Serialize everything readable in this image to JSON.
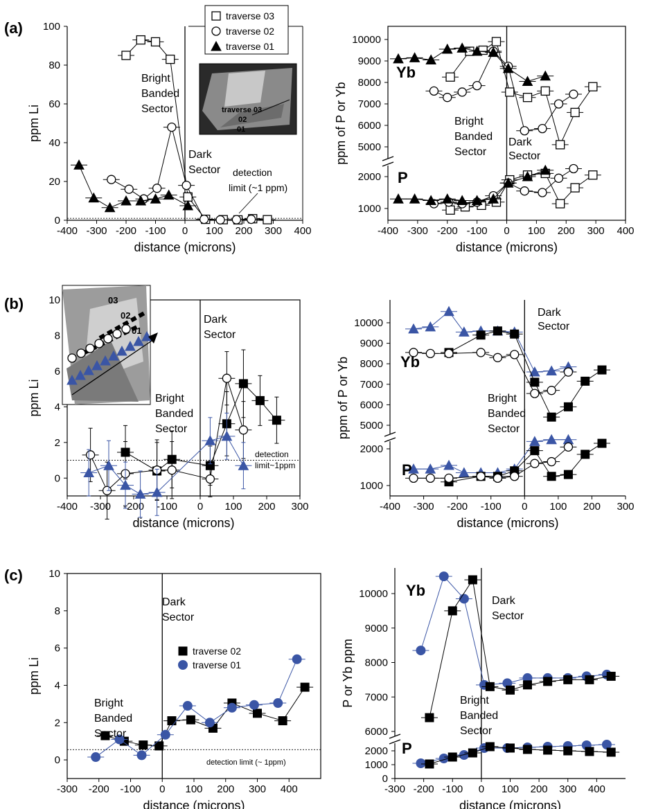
{
  "chart_data": [
    {
      "panel_label": "(a)",
      "type": "scatter",
      "xlabel": "distance (microns)",
      "ylabel": "ppm Li",
      "xlim": [
        -400,
        400
      ],
      "ylim": [
        0,
        100
      ],
      "xticks": [
        -400,
        -300,
        -200,
        -100,
        0,
        100,
        200,
        300,
        400
      ],
      "yticks": [
        0,
        20,
        40,
        60,
        80,
        100
      ],
      "y_tick_labels": [
        "0",
        "20",
        "40",
        "60",
        "80",
        "100"
      ],
      "legend": {
        "placement": "top-right",
        "entries": [
          {
            "name": "traverse 03",
            "marker": "square-open"
          },
          {
            "name": "traverse 02",
            "marker": "circle-open"
          },
          {
            "name": "traverse 01",
            "marker": "triangle-filled"
          }
        ]
      },
      "annotations": [
        "Bright Banded Sector",
        "Dark Sector",
        "detection limit (~1 ppm)"
      ],
      "inset_labels": [
        "traverse 03",
        "02",
        "01"
      ],
      "series": [
        {
          "name": "traverse 03",
          "marker": "square-open",
          "color": "#000000",
          "x": [
            -200,
            -150,
            -100,
            -50,
            10,
            70,
            130,
            180,
            230,
            280
          ],
          "y": [
            85,
            93,
            92,
            83,
            12,
            0.5,
            0.3,
            0.2,
            0.8,
            0.3
          ]
        },
        {
          "name": "traverse 02",
          "marker": "circle-open",
          "color": "#000000",
          "x": [
            -250,
            -190,
            -140,
            -95,
            -45,
            5,
            65,
            120,
            175,
            225
          ],
          "y": [
            21,
            16,
            11,
            16.5,
            48,
            18,
            0.5,
            0.2,
            0.3,
            0.5
          ]
        },
        {
          "name": "traverse 01",
          "marker": "triangle-filled",
          "color": "#000000",
          "x": [
            -360,
            -310,
            -255,
            -200,
            -150,
            -100,
            -55,
            10
          ],
          "y": [
            28.5,
            11.5,
            6.5,
            10,
            10,
            11,
            13,
            7.5
          ]
        }
      ]
    },
    {
      "panel_label": "",
      "type": "scatter",
      "xlabel": "distance (microns)",
      "ylabel": "ppm of P or Yb",
      "xlim": [
        -400,
        400
      ],
      "xticks": [
        -400,
        -300,
        -200,
        -100,
        0,
        100,
        200,
        300,
        400
      ],
      "y_tick_labels": [
        "1000",
        "2000",
        "5000",
        "6000",
        "7000",
        "8000",
        "9000",
        "10000"
      ],
      "annotations": [
        "Yb",
        "P",
        "Bright Banded Sector",
        "Dark Sector"
      ],
      "series": [
        {
          "name": "traverse 03 Yb",
          "marker": "square-open",
          "color": "#000000",
          "x": [
            -190,
            -125,
            -80,
            -35,
            10,
            70,
            130,
            180,
            230,
            290
          ],
          "y": [
            8250,
            9450,
            9500,
            9900,
            7550,
            7300,
            7600,
            5100,
            6600,
            7800
          ]
        },
        {
          "name": "traverse 02 Yb",
          "marker": "circle-open",
          "color": "#000000",
          "x": [
            -245,
            -200,
            -150,
            -100,
            -45,
            5,
            60,
            120,
            175,
            225
          ],
          "y": [
            7600,
            7300,
            7550,
            7850,
            9450,
            8750,
            5750,
            5850,
            7000,
            7450
          ]
        },
        {
          "name": "traverse 01 Yb",
          "marker": "triangle-filled",
          "color": "#000000",
          "x": [
            -365,
            -310,
            -255,
            -200,
            -150,
            -100,
            -45,
            5,
            70,
            130
          ],
          "y": [
            9100,
            9150,
            9050,
            9550,
            9600,
            9450,
            9400,
            8650,
            8050,
            8300
          ]
        },
        {
          "name": "traverse 03 P",
          "marker": "square-open",
          "color": "#000000",
          "x": [
            -190,
            -140,
            -85,
            -35,
            10,
            70,
            130,
            180,
            230,
            290
          ],
          "y": [
            950,
            1050,
            1100,
            1200,
            1900,
            2050,
            2100,
            1150,
            1650,
            2050
          ]
        },
        {
          "name": "traverse 02 P",
          "marker": "circle-open",
          "color": "#000000",
          "x": [
            -245,
            -195,
            -150,
            -100,
            -45,
            5,
            60,
            120,
            175,
            225
          ],
          "y": [
            1150,
            1200,
            1150,
            1200,
            1400,
            1800,
            1550,
            1500,
            1950,
            2250
          ]
        },
        {
          "name": "traverse 01 P",
          "marker": "triangle-filled",
          "color": "#000000",
          "x": [
            -365,
            -310,
            -255,
            -200,
            -150,
            -100,
            -45,
            5,
            70,
            130
          ],
          "y": [
            1300,
            1300,
            1250,
            1300,
            1250,
            1250,
            1300,
            1800,
            2000,
            2200
          ]
        }
      ]
    },
    {
      "panel_label": "(b)",
      "type": "scatter",
      "xlabel": "distance (microns)",
      "ylabel": "ppm Li",
      "xlim": [
        -400,
        300
      ],
      "ylim": [
        -1,
        10
      ],
      "xticks": [
        -400,
        -300,
        -200,
        -100,
        0,
        100,
        200,
        300
      ],
      "yticks": [
        0,
        2,
        4,
        6,
        8,
        10
      ],
      "y_tick_labels": [
        "0",
        "2",
        "4",
        "6",
        "8",
        "10"
      ],
      "annotations": [
        "Bright Banded Sector",
        "Dark Sector",
        "detection limit~1ppm"
      ],
      "inset_labels": [
        "03",
        "02",
        "01"
      ],
      "series": [
        {
          "name": "03",
          "marker": "square-filled",
          "color": "#000000",
          "x": [
            -225,
            -130,
            -85,
            30,
            80,
            130,
            180,
            230
          ],
          "y": [
            1.45,
            0.4,
            1.05,
            0.7,
            3.05,
            5.3,
            4.35,
            3.25
          ],
          "err": [
            1.5,
            1.6,
            1.6,
            1.1,
            1.8,
            1.9,
            1.4,
            1.3
          ]
        },
        {
          "name": "02",
          "marker": "circle-open",
          "color": "#000000",
          "x": [
            -330,
            -280,
            -225,
            -130,
            -85,
            30,
            80,
            130
          ],
          "y": [
            1.3,
            -0.7,
            0.25,
            0.45,
            0.45,
            -0.05,
            5.6,
            2.7
          ],
          "err": [
            1.5,
            1.6,
            1.8,
            1.7,
            1.6,
            1.0,
            1.5,
            1.6
          ]
        },
        {
          "name": "01",
          "marker": "triangle-filled",
          "color": "#3a55a5",
          "x": [
            -335,
            -275,
            -225,
            -180,
            -130,
            30,
            80,
            130
          ],
          "y": [
            0.3,
            0.7,
            -0.4,
            -0.9,
            -0.8,
            2.1,
            2.35,
            0.7
          ],
          "err": [
            1.3,
            1.4,
            1.3,
            1.3,
            1.3,
            1.3,
            1.3,
            1.3
          ]
        }
      ]
    },
    {
      "panel_label": "",
      "type": "scatter",
      "xlabel": "distance (microns)",
      "ylabel": "ppm of P or Yb",
      "xlim": [
        -400,
        300
      ],
      "xticks": [
        -400,
        -300,
        -200,
        -100,
        0,
        100,
        200,
        300
      ],
      "y_tick_labels": [
        "1000",
        "2000",
        "5000",
        "6000",
        "7000",
        "8000",
        "9000",
        "10000"
      ],
      "annotations": [
        "Yb",
        "P",
        "Dark Sector",
        "Bright Banded Sector"
      ],
      "series": [
        {
          "name": "01 Yb",
          "marker": "triangle-filled",
          "color": "#3a55a5",
          "x": [
            -330,
            -280,
            -225,
            -180,
            -130,
            -80,
            -30,
            30,
            80,
            130
          ],
          "y": [
            9700,
            9800,
            10550,
            9550,
            9600,
            9600,
            9550,
            7600,
            7650,
            7850
          ]
        },
        {
          "name": "03 Yb",
          "marker": "square-filled",
          "color": "#000000",
          "x": [
            -225,
            -130,
            -80,
            -30,
            30,
            80,
            130,
            180,
            230
          ],
          "y": [
            8550,
            9400,
            9600,
            9450,
            7100,
            5400,
            5900,
            7150,
            7700
          ]
        },
        {
          "name": "02 Yb",
          "marker": "circle-open",
          "color": "#000000",
          "x": [
            -330,
            -280,
            -225,
            -130,
            -80,
            -30,
            30,
            80,
            130
          ],
          "y": [
            8550,
            8500,
            8500,
            8550,
            8300,
            8450,
            6550,
            6700,
            7600
          ]
        },
        {
          "name": "01 P",
          "marker": "triangle-filled",
          "color": "#3a55a5",
          "x": [
            -330,
            -280,
            -225,
            -180,
            -130,
            -80,
            -30,
            30,
            80,
            130
          ],
          "y": [
            1450,
            1450,
            1550,
            1350,
            1350,
            1350,
            1450,
            2200,
            2250,
            2250
          ]
        },
        {
          "name": "03 P",
          "marker": "square-filled",
          "color": "#000000",
          "x": [
            -225,
            -130,
            -80,
            -30,
            30,
            80,
            130,
            180,
            230
          ],
          "y": [
            1100,
            1250,
            1250,
            1400,
            1950,
            1250,
            1300,
            1850,
            2150
          ]
        },
        {
          "name": "02 P",
          "marker": "circle-open",
          "color": "#000000",
          "x": [
            -330,
            -280,
            -225,
            -130,
            -80,
            -30,
            30,
            80,
            130
          ],
          "y": [
            1200,
            1200,
            1200,
            1250,
            1200,
            1250,
            1600,
            1650,
            2050
          ]
        }
      ]
    },
    {
      "panel_label": "(c)",
      "type": "scatter",
      "xlabel": "distance (microns)",
      "ylabel": "ppm Li",
      "xlim": [
        -300,
        500
      ],
      "ylim": [
        -1,
        10
      ],
      "xticks": [
        -300,
        -200,
        -100,
        0,
        100,
        200,
        300,
        400
      ],
      "yticks": [
        0,
        2,
        4,
        6,
        8,
        10
      ],
      "y_tick_labels": [
        "0",
        "2",
        "4",
        "6",
        "8",
        "10"
      ],
      "legend": {
        "placement": "center-right",
        "entries": [
          {
            "name": "traverse 02",
            "marker": "square-filled"
          },
          {
            "name": "traverse 01",
            "marker": "circle-filled"
          }
        ]
      },
      "annotations": [
        "Bright Banded Sector",
        "Dark Sector",
        "detection limit (~ 1ppm)"
      ],
      "series": [
        {
          "name": "traverse 02",
          "marker": "square-filled",
          "color": "#000000",
          "x": [
            -180,
            -120,
            -60,
            -10,
            30,
            90,
            160,
            220,
            300,
            380,
            450
          ],
          "y": [
            1.3,
            1.0,
            0.8,
            0.75,
            2.1,
            2.15,
            1.7,
            3.05,
            2.5,
            2.1,
            3.9
          ]
        },
        {
          "name": "traverse 01",
          "marker": "circle-filled",
          "color": "#3a55a5",
          "x": [
            -210,
            -135,
            -65,
            10,
            80,
            150,
            220,
            290,
            365,
            425
          ],
          "y": [
            0.15,
            1.1,
            0.25,
            1.35,
            2.9,
            2.0,
            2.8,
            2.95,
            3.05,
            5.4
          ]
        }
      ]
    },
    {
      "panel_label": "",
      "type": "scatter",
      "xlabel": "distance (microns)",
      "ylabel": "P or Yb ppm",
      "xlim": [
        -300,
        500
      ],
      "xticks": [
        -300,
        -200,
        -100,
        0,
        100,
        200,
        300,
        400
      ],
      "y_tick_labels": [
        "0",
        "1000",
        "2000",
        "6000",
        "7000",
        "8000",
        "9000",
        "10000"
      ],
      "annotations": [
        "Yb",
        "P",
        "Dark Sector",
        "Bright Banded Sector"
      ],
      "series": [
        {
          "name": "traverse 01 Yb",
          "marker": "circle-filled",
          "color": "#3a55a5",
          "x": [
            -210,
            -130,
            -60,
            10,
            90,
            160,
            230,
            300,
            365,
            435
          ],
          "y": [
            8350,
            10500,
            9850,
            7350,
            7400,
            7550,
            7550,
            7550,
            7600,
            7650
          ]
        },
        {
          "name": "traverse 02 Yb",
          "marker": "square-filled",
          "color": "#000000",
          "x": [
            -180,
            -100,
            -30,
            30,
            100,
            160,
            230,
            300,
            375,
            450
          ],
          "y": [
            6400,
            9500,
            10400,
            7300,
            7200,
            7350,
            7450,
            7500,
            7500,
            7600
          ]
        },
        {
          "name": "traverse 01 P",
          "marker": "circle-filled",
          "color": "#3a55a5",
          "x": [
            -210,
            -130,
            -60,
            10,
            90,
            160,
            230,
            300,
            365,
            435
          ],
          "y": [
            1100,
            1450,
            1700,
            2200,
            2200,
            2250,
            2300,
            2350,
            2400,
            2450
          ]
        },
        {
          "name": "traverse 02 P",
          "marker": "square-filled",
          "color": "#000000",
          "x": [
            -180,
            -100,
            -30,
            30,
            100,
            160,
            230,
            300,
            375,
            450
          ],
          "y": [
            1050,
            1550,
            1850,
            2300,
            2200,
            2100,
            2050,
            2000,
            1950,
            1900
          ]
        }
      ]
    }
  ]
}
